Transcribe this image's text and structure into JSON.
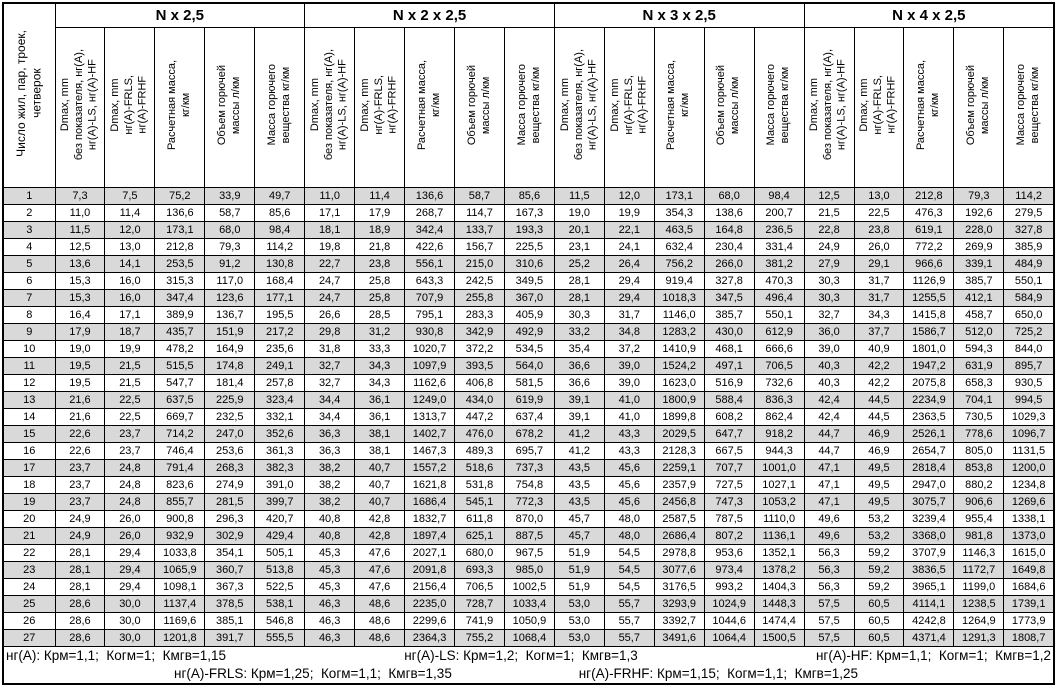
{
  "table": {
    "first_col_header": "Число жил, пар, троек,\nчетверок",
    "groups": [
      {
        "title": "N x 2,5"
      },
      {
        "title": "N x 2 x 2,5"
      },
      {
        "title": "N x 3 x 2,5"
      },
      {
        "title": "N x 4 x 2,5"
      }
    ],
    "sub_headers": [
      "Dmax, mm\nбез показателя, нг(А),\nнг(А)-LS, нг(А)-HF",
      "Dmax, mm\nнг(А)-FRLS,\nнг(А)-FRHF",
      "Расчетная масса,\nкг/км",
      "Объем горючей\nмассы л/км",
      "Масса горючего\nвещества кг/км"
    ],
    "rows": [
      [
        "1",
        "7,3",
        "7,5",
        "75,2",
        "33,9",
        "49,7",
        "11,0",
        "11,4",
        "136,6",
        "58,7",
        "85,6",
        "11,5",
        "12,0",
        "173,1",
        "68,0",
        "98,4",
        "12,5",
        "13,0",
        "212,8",
        "79,3",
        "114,2"
      ],
      [
        "2",
        "11,0",
        "11,4",
        "136,6",
        "58,7",
        "85,6",
        "17,1",
        "17,9",
        "268,7",
        "114,7",
        "167,3",
        "19,0",
        "19,9",
        "354,3",
        "138,6",
        "200,7",
        "21,5",
        "22,5",
        "476,3",
        "192,6",
        "279,5"
      ],
      [
        "3",
        "11,5",
        "12,0",
        "173,1",
        "68,0",
        "98,4",
        "18,1",
        "18,9",
        "342,4",
        "133,7",
        "193,3",
        "20,1",
        "22,1",
        "463,5",
        "164,8",
        "236,5",
        "22,8",
        "23,8",
        "619,1",
        "228,0",
        "327,8"
      ],
      [
        "4",
        "12,5",
        "13,0",
        "212,8",
        "79,3",
        "114,2",
        "19,8",
        "21,8",
        "422,6",
        "156,7",
        "225,5",
        "23,1",
        "24,1",
        "632,4",
        "230,4",
        "331,4",
        "24,9",
        "26,0",
        "772,2",
        "269,9",
        "385,9"
      ],
      [
        "5",
        "13,6",
        "14,1",
        "253,5",
        "91,2",
        "130,8",
        "22,7",
        "23,8",
        "556,1",
        "215,0",
        "310,6",
        "25,2",
        "26,4",
        "756,2",
        "266,0",
        "381,2",
        "27,9",
        "29,1",
        "966,6",
        "339,1",
        "484,9"
      ],
      [
        "6",
        "15,3",
        "16,0",
        "315,3",
        "117,0",
        "168,4",
        "24,7",
        "25,8",
        "643,3",
        "242,5",
        "349,5",
        "28,1",
        "29,4",
        "919,4",
        "327,8",
        "470,3",
        "30,3",
        "31,7",
        "1126,9",
        "385,7",
        "550,1"
      ],
      [
        "7",
        "15,3",
        "16,0",
        "347,4",
        "123,6",
        "177,1",
        "24,7",
        "25,8",
        "707,9",
        "255,8",
        "367,0",
        "28,1",
        "29,4",
        "1018,3",
        "347,5",
        "496,4",
        "30,3",
        "31,7",
        "1255,5",
        "412,1",
        "584,9"
      ],
      [
        "8",
        "16,4",
        "17,1",
        "389,9",
        "136,7",
        "195,5",
        "26,6",
        "28,5",
        "795,1",
        "283,3",
        "405,9",
        "30,3",
        "31,7",
        "1146,0",
        "385,7",
        "550,1",
        "32,7",
        "34,3",
        "1415,8",
        "458,7",
        "650,0"
      ],
      [
        "9",
        "17,9",
        "18,7",
        "435,7",
        "151,9",
        "217,2",
        "29,8",
        "31,2",
        "930,8",
        "342,9",
        "492,9",
        "33,2",
        "34,8",
        "1283,2",
        "430,0",
        "612,9",
        "36,0",
        "37,7",
        "1586,7",
        "512,0",
        "725,2"
      ],
      [
        "10",
        "19,0",
        "19,9",
        "478,2",
        "164,9",
        "235,6",
        "31,8",
        "33,3",
        "1020,7",
        "372,2",
        "534,5",
        "35,4",
        "37,2",
        "1410,9",
        "468,1",
        "666,6",
        "39,0",
        "40,9",
        "1801,0",
        "594,3",
        "844,0"
      ],
      [
        "11",
        "19,5",
        "21,5",
        "515,5",
        "174,8",
        "249,1",
        "32,7",
        "34,3",
        "1097,9",
        "393,5",
        "564,0",
        "36,6",
        "39,0",
        "1524,2",
        "497,1",
        "706,5",
        "40,3",
        "42,2",
        "1947,2",
        "631,9",
        "895,7"
      ],
      [
        "12",
        "19,5",
        "21,5",
        "547,7",
        "181,4",
        "257,8",
        "32,7",
        "34,3",
        "1162,6",
        "406,8",
        "581,5",
        "36,6",
        "39,0",
        "1623,0",
        "516,9",
        "732,6",
        "40,3",
        "42,2",
        "2075,8",
        "658,3",
        "930,5"
      ],
      [
        "13",
        "21,6",
        "22,5",
        "637,5",
        "225,9",
        "323,4",
        "34,4",
        "36,1",
        "1249,0",
        "434,0",
        "619,9",
        "39,1",
        "41,0",
        "1800,9",
        "588,4",
        "836,3",
        "42,4",
        "44,5",
        "2234,9",
        "704,1",
        "994,5"
      ],
      [
        "14",
        "21,6",
        "22,5",
        "669,7",
        "232,5",
        "332,1",
        "34,4",
        "36,1",
        "1313,7",
        "447,2",
        "637,4",
        "39,1",
        "41,0",
        "1899,8",
        "608,2",
        "862,4",
        "42,4",
        "44,5",
        "2363,5",
        "730,5",
        "1029,3"
      ],
      [
        "15",
        "22,6",
        "23,7",
        "714,2",
        "247,0",
        "352,6",
        "36,3",
        "38,1",
        "1402,7",
        "476,0",
        "678,2",
        "41,2",
        "43,3",
        "2029,5",
        "647,7",
        "918,2",
        "44,7",
        "46,9",
        "2526,1",
        "778,6",
        "1096,7"
      ],
      [
        "16",
        "22,6",
        "23,7",
        "746,4",
        "253,6",
        "361,3",
        "36,3",
        "38,1",
        "1467,3",
        "489,3",
        "695,7",
        "41,2",
        "43,3",
        "2128,3",
        "667,5",
        "944,3",
        "44,7",
        "46,9",
        "2654,7",
        "805,0",
        "1131,5"
      ],
      [
        "17",
        "23,7",
        "24,8",
        "791,4",
        "268,3",
        "382,3",
        "38,2",
        "40,7",
        "1557,2",
        "518,6",
        "737,3",
        "43,5",
        "45,6",
        "2259,1",
        "707,7",
        "1001,0",
        "47,1",
        "49,5",
        "2818,4",
        "853,8",
        "1200,0"
      ],
      [
        "18",
        "23,7",
        "24,8",
        "823,6",
        "274,9",
        "391,0",
        "38,2",
        "40,7",
        "1621,8",
        "531,8",
        "754,8",
        "43,5",
        "45,6",
        "2357,9",
        "727,5",
        "1027,1",
        "47,1",
        "49,5",
        "2947,0",
        "880,2",
        "1234,8"
      ],
      [
        "19",
        "23,7",
        "24,8",
        "855,7",
        "281,5",
        "399,7",
        "38,2",
        "40,7",
        "1686,4",
        "545,1",
        "772,3",
        "43,5",
        "45,6",
        "2456,8",
        "747,3",
        "1053,2",
        "47,1",
        "49,5",
        "3075,7",
        "906,6",
        "1269,6"
      ],
      [
        "20",
        "24,9",
        "26,0",
        "900,8",
        "296,3",
        "420,7",
        "40,8",
        "42,8",
        "1832,7",
        "611,8",
        "870,0",
        "45,7",
        "48,0",
        "2587,5",
        "787,5",
        "1110,0",
        "49,6",
        "53,2",
        "3239,4",
        "955,4",
        "1338,1"
      ],
      [
        "21",
        "24,9",
        "26,0",
        "932,9",
        "302,9",
        "429,4",
        "40,8",
        "42,8",
        "1897,4",
        "625,1",
        "887,5",
        "45,7",
        "48,0",
        "2686,4",
        "807,2",
        "1136,1",
        "49,6",
        "53,2",
        "3368,0",
        "981,8",
        "1373,0"
      ],
      [
        "22",
        "28,1",
        "29,4",
        "1033,8",
        "354,1",
        "505,1",
        "45,3",
        "47,6",
        "2027,1",
        "680,0",
        "967,5",
        "51,9",
        "54,5",
        "2978,8",
        "953,6",
        "1352,1",
        "56,3",
        "59,2",
        "3707,9",
        "1146,3",
        "1615,0"
      ],
      [
        "23",
        "28,1",
        "29,4",
        "1065,9",
        "360,7",
        "513,8",
        "45,3",
        "47,6",
        "2091,8",
        "693,3",
        "985,0",
        "51,9",
        "54,5",
        "3077,6",
        "973,4",
        "1378,2",
        "56,3",
        "59,2",
        "3836,5",
        "1172,7",
        "1649,8"
      ],
      [
        "24",
        "28,1",
        "29,4",
        "1098,1",
        "367,3",
        "522,5",
        "45,3",
        "47,6",
        "2156,4",
        "706,5",
        "1002,5",
        "51,9",
        "54,5",
        "3176,5",
        "993,2",
        "1404,3",
        "56,3",
        "59,2",
        "3965,1",
        "1199,0",
        "1684,6"
      ],
      [
        "25",
        "28,6",
        "30,0",
        "1137,4",
        "378,5",
        "538,1",
        "46,3",
        "48,6",
        "2235,0",
        "728,7",
        "1033,4",
        "53,0",
        "55,7",
        "3293,9",
        "1024,9",
        "1448,3",
        "57,5",
        "60,5",
        "4114,1",
        "1238,5",
        "1739,1"
      ],
      [
        "26",
        "28,6",
        "30,0",
        "1169,6",
        "385,1",
        "546,8",
        "46,3",
        "48,6",
        "2299,6",
        "741,9",
        "1050,9",
        "53,0",
        "55,7",
        "3392,7",
        "1044,6",
        "1474,4",
        "57,5",
        "60,5",
        "4242,8",
        "1264,9",
        "1773,9"
      ],
      [
        "27",
        "28,6",
        "30,0",
        "1201,8",
        "391,7",
        "555,5",
        "46,3",
        "48,6",
        "2364,3",
        "755,2",
        "1068,4",
        "53,0",
        "55,7",
        "3491,6",
        "1064,4",
        "1500,5",
        "57,5",
        "60,5",
        "4371,4",
        "1291,3",
        "1808,7"
      ]
    ]
  },
  "footer": {
    "line1": [
      "нг(А): Крм=1,1;  Когм=1;  Кмгв=1,15",
      "нг(А)-LS: Крм=1,2;  Когм=1;  Кмгв=1,3",
      "нг(А)-HF: Крм=1,1;  Когм=1;  Кмгв=1,2"
    ],
    "line2": [
      "нг(А)-FRLS: Крм=1,25;  Когм=1,1;  Кмгв=1,35",
      "нг(А)-FRHF: Крм=1,15;  Когм=1,1;  Кмгв=1,25"
    ]
  },
  "colors": {
    "row_shade": "#d9d9d9",
    "border": "#000000",
    "text": "#000000",
    "background": "#ffffff"
  }
}
